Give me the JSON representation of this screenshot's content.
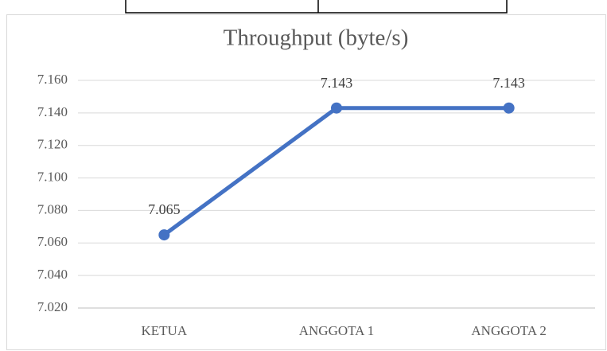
{
  "chart_data": {
    "type": "line",
    "title": "Throughput (byte/s)",
    "categories": [
      "KETUA",
      "ANGGOTA 1",
      "ANGGOTA 2"
    ],
    "series": [
      {
        "name": "Throughput (byte/s)",
        "color": "#4472c4",
        "values": [
          7.065,
          7.143,
          7.143
        ]
      }
    ],
    "ylim": [
      7.02,
      7.16
    ],
    "yticks": [
      {
        "value": 7.02,
        "label": "7.020"
      },
      {
        "value": 7.04,
        "label": "7.040"
      },
      {
        "value": 7.06,
        "label": "7.060"
      },
      {
        "value": 7.08,
        "label": "7.080"
      },
      {
        "value": 7.1,
        "label": "7.100"
      },
      {
        "value": 7.12,
        "label": "7.120"
      },
      {
        "value": 7.14,
        "label": "7.140"
      },
      {
        "value": 7.16,
        "label": "7.160"
      }
    ],
    "grid": true
  }
}
